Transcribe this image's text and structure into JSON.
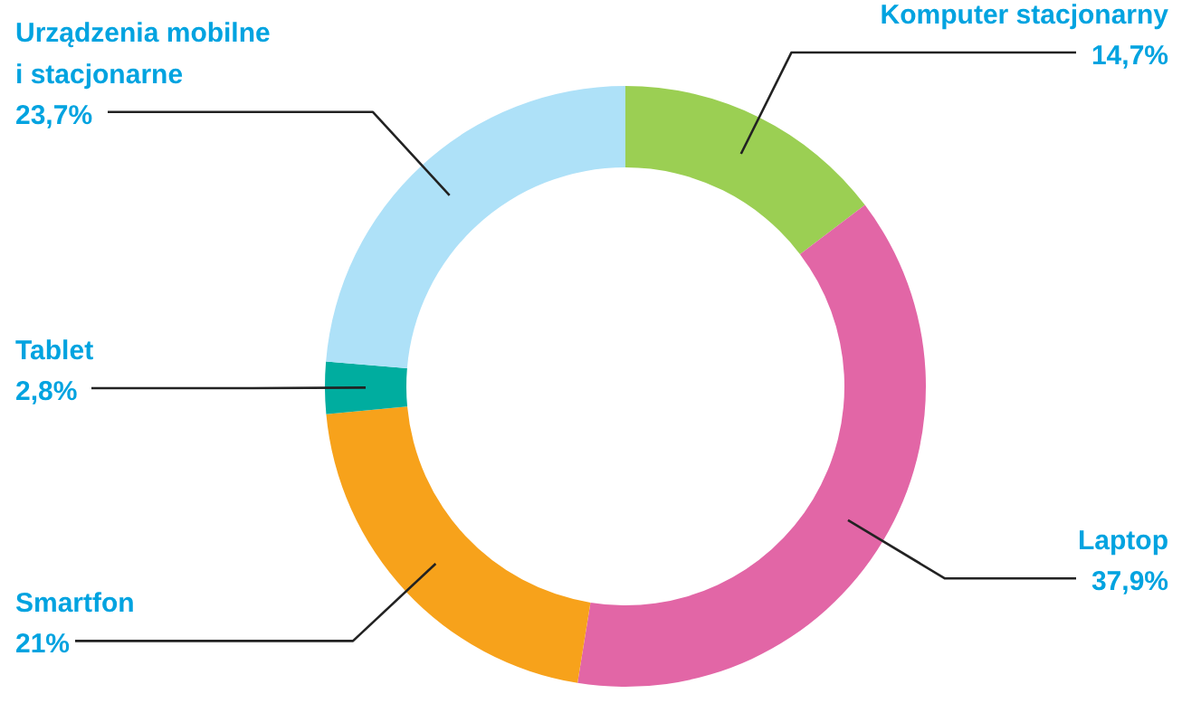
{
  "chart_data": {
    "type": "donut",
    "categories": [
      "Komputer stacjonarny",
      "Laptop",
      "Smartfon",
      "Tablet",
      "Urządzenia mobilne\ni stacjonarne"
    ],
    "values": [
      14.7,
      37.9,
      21,
      2.8,
      23.7
    ],
    "colors": [
      "#9bcf53",
      "#e266a6",
      "#f7a21b",
      "#00ad9f",
      "#aee1f8"
    ],
    "value_labels": [
      "14,7%",
      "37,9%",
      "21%",
      "2,8%",
      "23,7%"
    ]
  }
}
